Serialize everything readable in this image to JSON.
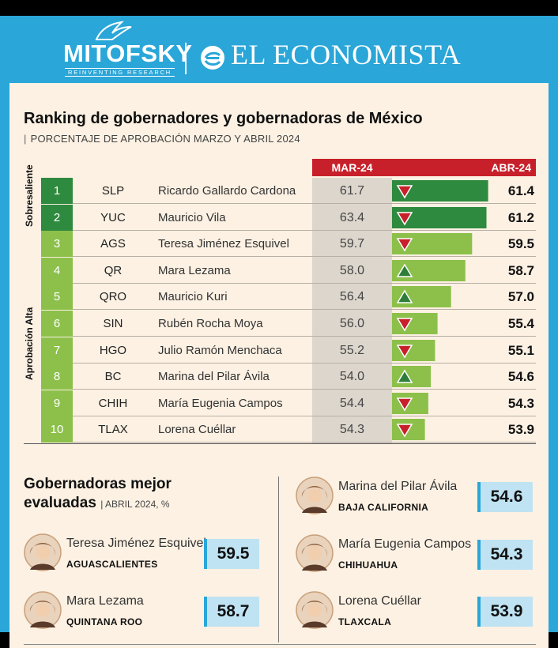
{
  "header": {
    "mitofsky": "MITOFSKY",
    "mitofsky_tagline": "REINVENTING RESEARCH",
    "economista": "EL ECONOMISTA"
  },
  "title": "Ranking de gobernadores y gobernadoras de México",
  "subtitle": "PORCENTAJE DE APROBACIÓN MARZO Y ABRIL 2024",
  "columns": {
    "mar": "MAR-24",
    "abr": "ABR-24"
  },
  "categories": {
    "top": "Sobresaliente",
    "rest": "Aprobación Alta"
  },
  "colors": {
    "dark_green": "#2e8a3e",
    "light_green": "#8cc04a",
    "red": "#c7202a",
    "up": "#2e7d3a",
    "accent_blue": "#2aa6d8"
  },
  "chart_data": {
    "type": "bar",
    "title": "Ranking de gobernadores y gobernadoras de México",
    "subtitle": "PORCENTAJE DE APROBACIÓN MARZO Y ABRIL 2024",
    "series": [
      {
        "name": "MAR-24",
        "values": [
          61.7,
          63.4,
          59.7,
          58.0,
          56.4,
          56.0,
          55.2,
          54.0,
          54.4,
          54.3
        ]
      },
      {
        "name": "ABR-24",
        "values": [
          61.4,
          61.2,
          59.5,
          58.7,
          57.0,
          55.4,
          55.1,
          54.6,
          54.3,
          53.9
        ]
      }
    ],
    "rows": [
      {
        "rank": "1",
        "state": "SLP",
        "name": "Ricardo Gallardo Cardona",
        "mar": "61.7",
        "abr": "61.4",
        "abr_value": 61.4,
        "trend": "down",
        "tier": "Sobresaliente"
      },
      {
        "rank": "2",
        "state": "YUC",
        "name": "Mauricio Vila",
        "mar": "63.4",
        "abr": "61.2",
        "abr_value": 61.2,
        "trend": "down",
        "tier": "Sobresaliente"
      },
      {
        "rank": "3",
        "state": "AGS",
        "name": "Teresa Jiménez Esquivel",
        "mar": "59.7",
        "abr": "59.5",
        "abr_value": 59.5,
        "trend": "down",
        "tier": "Aprobación Alta"
      },
      {
        "rank": "4",
        "state": "QR",
        "name": "Mara Lezama",
        "mar": "58.0",
        "abr": "58.7",
        "abr_value": 58.7,
        "trend": "up",
        "tier": "Aprobación Alta"
      },
      {
        "rank": "5",
        "state": "QRO",
        "name": "Mauricio Kuri",
        "mar": "56.4",
        "abr": "57.0",
        "abr_value": 57.0,
        "trend": "up",
        "tier": "Aprobación Alta"
      },
      {
        "rank": "6",
        "state": "SIN",
        "name": "Rubén Rocha Moya",
        "mar": "56.0",
        "abr": "55.4",
        "abr_value": 55.4,
        "trend": "down",
        "tier": "Aprobación Alta"
      },
      {
        "rank": "7",
        "state": "HGO",
        "name": "Julio Ramón Menchaca",
        "mar": "55.2",
        "abr": "55.1",
        "abr_value": 55.1,
        "trend": "down",
        "tier": "Aprobación Alta"
      },
      {
        "rank": "8",
        "state": "BC",
        "name": "Marina del Pilar Ávila",
        "mar": "54.0",
        "abr": "54.6",
        "abr_value": 54.6,
        "trend": "up",
        "tier": "Aprobación Alta"
      },
      {
        "rank": "9",
        "state": "CHIH",
        "name": "María Eugenia Campos",
        "mar": "54.4",
        "abr": "54.3",
        "abr_value": 54.3,
        "trend": "down",
        "tier": "Aprobación Alta"
      },
      {
        "rank": "10",
        "state": "TLAX",
        "name": "Lorena Cuéllar",
        "mar": "54.3",
        "abr": "53.9",
        "abr_value": 53.9,
        "trend": "down",
        "tier": "Aprobación Alta"
      }
    ],
    "bar_axis": [
      50,
      62
    ]
  },
  "women": {
    "title_line1": "Gobernadoras mejor",
    "title_line2": "evaluadas",
    "subtitle": "ABRIL 2024, %",
    "items": [
      {
        "name": "Teresa Jiménez Esquivel",
        "state": "AGUASCALIENTES",
        "value": "59.5"
      },
      {
        "name": "Mara Lezama",
        "state": "QUINTANA ROO",
        "value": "58.7"
      },
      {
        "name": "Marina del Pilar Ávila",
        "state": "BAJA CALIFORNIA",
        "value": "54.6"
      },
      {
        "name": "María Eugenia Campos",
        "state": "CHIHUAHUA",
        "value": "54.3"
      },
      {
        "name": "Lorena Cuéllar",
        "state": "TLAXCALA",
        "value": "53.9"
      }
    ]
  }
}
